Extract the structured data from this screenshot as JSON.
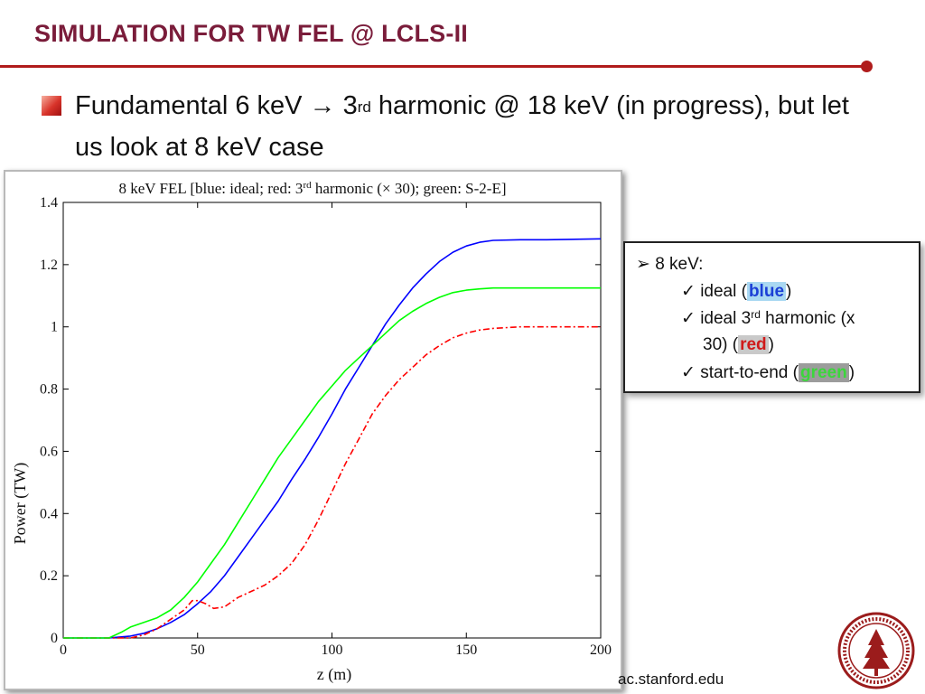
{
  "slide": {
    "title": "SIMULATION FOR TW FEL @ LCLS-II",
    "bullet_part1": "Fundamental 6 keV ",
    "arrow": "→",
    "bullet_part2": " 3",
    "bullet_sup": "rd",
    "bullet_part3": " harmonic @ 18 keV (in progress), but let us look at 8 keV case",
    "footer": "ac.stanford.edu"
  },
  "legend": {
    "header": "8 keV:",
    "header_marker": "➢",
    "check": "✓",
    "item1_pre": "ideal (",
    "item1_kw": "blue",
    "item1_post": ")",
    "item2_pre": "ideal 3",
    "item2_sup": "rd",
    "item2_post": " harmonic (x",
    "item2_line2_pre": "30) (",
    "item2_kw": "red",
    "item2_line2_post": ")",
    "item3_pre": "start-to-end (",
    "item3_kw": "green",
    "item3_post": ")"
  },
  "colors": {
    "title": "#7a1c3a",
    "rule": "#b01c1c",
    "ideal": "#0000ff",
    "harmonic": "#ff0000",
    "s2e": "#00ff00"
  },
  "chart_data": {
    "type": "line",
    "title_parts": {
      "a": "8 keV FEL [blue: ideal; red: 3",
      "sup": "rd",
      "b": " harmonic (",
      "times": "×",
      "c": " 30); green: S-2-E]"
    },
    "xlabel": "z  (m)",
    "ylabel": "Power (TW)",
    "xlim": [
      0,
      200
    ],
    "ylim": [
      0,
      1.4
    ],
    "xticks": [
      "0",
      "50",
      "100",
      "150",
      "200"
    ],
    "yticks": [
      "0",
      "0.2",
      "0.4",
      "0.6",
      "0.8",
      "1",
      "1.2",
      "1.4"
    ],
    "series": [
      {
        "key": "ideal",
        "color": "#0000ff",
        "dash": "",
        "points": [
          [
            0,
            0
          ],
          [
            17,
            0
          ],
          [
            25,
            0.006
          ],
          [
            30,
            0.015
          ],
          [
            35,
            0.03
          ],
          [
            40,
            0.05
          ],
          [
            45,
            0.075
          ],
          [
            50,
            0.11
          ],
          [
            55,
            0.15
          ],
          [
            60,
            0.2
          ],
          [
            65,
            0.26
          ],
          [
            70,
            0.32
          ],
          [
            75,
            0.38
          ],
          [
            80,
            0.44
          ],
          [
            85,
            0.51
          ],
          [
            90,
            0.575
          ],
          [
            95,
            0.645
          ],
          [
            100,
            0.72
          ],
          [
            105,
            0.8
          ],
          [
            110,
            0.87
          ],
          [
            115,
            0.94
          ],
          [
            120,
            1.01
          ],
          [
            125,
            1.07
          ],
          [
            130,
            1.125
          ],
          [
            135,
            1.17
          ],
          [
            140,
            1.21
          ],
          [
            145,
            1.24
          ],
          [
            150,
            1.26
          ],
          [
            155,
            1.272
          ],
          [
            160,
            1.278
          ],
          [
            170,
            1.28
          ],
          [
            180,
            1.28
          ],
          [
            200,
            1.283
          ]
        ]
      },
      {
        "key": "harmonic",
        "color": "#ff0000",
        "dash": "7 3 2 3",
        "points": [
          [
            0,
            0
          ],
          [
            25,
            0
          ],
          [
            30,
            0.01
          ],
          [
            35,
            0.03
          ],
          [
            40,
            0.06
          ],
          [
            45,
            0.09
          ],
          [
            48,
            0.12
          ],
          [
            50,
            0.12
          ],
          [
            53,
            0.11
          ],
          [
            56,
            0.095
          ],
          [
            60,
            0.1
          ],
          [
            65,
            0.13
          ],
          [
            70,
            0.15
          ],
          [
            75,
            0.17
          ],
          [
            80,
            0.2
          ],
          [
            85,
            0.24
          ],
          [
            90,
            0.3
          ],
          [
            95,
            0.38
          ],
          [
            100,
            0.47
          ],
          [
            105,
            0.56
          ],
          [
            110,
            0.64
          ],
          [
            115,
            0.72
          ],
          [
            120,
            0.78
          ],
          [
            125,
            0.83
          ],
          [
            130,
            0.87
          ],
          [
            135,
            0.91
          ],
          [
            140,
            0.94
          ],
          [
            145,
            0.965
          ],
          [
            150,
            0.98
          ],
          [
            155,
            0.99
          ],
          [
            160,
            0.995
          ],
          [
            170,
            1.0
          ],
          [
            180,
            1.0
          ],
          [
            200,
            1.0
          ]
        ]
      },
      {
        "key": "s2e",
        "color": "#00ff00",
        "dash": "",
        "points": [
          [
            0,
            0
          ],
          [
            17,
            0
          ],
          [
            22,
            0.02
          ],
          [
            25,
            0.035
          ],
          [
            30,
            0.05
          ],
          [
            35,
            0.065
          ],
          [
            40,
            0.09
          ],
          [
            45,
            0.13
          ],
          [
            50,
            0.18
          ],
          [
            55,
            0.24
          ],
          [
            60,
            0.3
          ],
          [
            65,
            0.37
          ],
          [
            70,
            0.44
          ],
          [
            75,
            0.51
          ],
          [
            80,
            0.58
          ],
          [
            85,
            0.64
          ],
          [
            90,
            0.7
          ],
          [
            95,
            0.76
          ],
          [
            100,
            0.81
          ],
          [
            105,
            0.86
          ],
          [
            110,
            0.9
          ],
          [
            115,
            0.94
          ],
          [
            120,
            0.98
          ],
          [
            125,
            1.02
          ],
          [
            130,
            1.05
          ],
          [
            135,
            1.075
          ],
          [
            140,
            1.095
          ],
          [
            145,
            1.11
          ],
          [
            150,
            1.118
          ],
          [
            155,
            1.122
          ],
          [
            160,
            1.125
          ],
          [
            170,
            1.125
          ],
          [
            180,
            1.125
          ],
          [
            200,
            1.125
          ]
        ]
      }
    ]
  }
}
